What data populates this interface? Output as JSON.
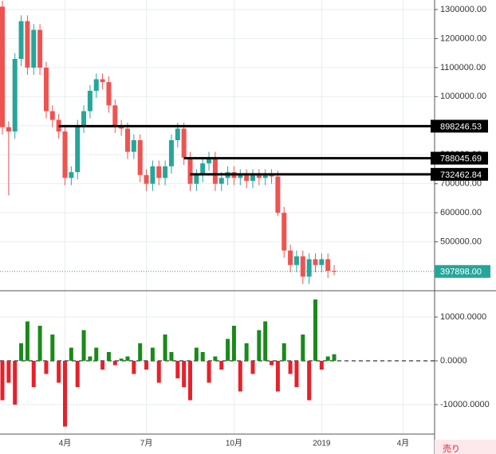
{
  "chart_data": {
    "type": "candlestick",
    "categories": [
      null,
      null,
      null,
      null,
      null,
      null,
      null,
      null,
      null,
      null,
      "4月",
      null,
      null,
      null,
      null,
      null,
      null,
      null,
      null,
      null,
      null,
      null,
      null,
      "7月",
      null,
      null,
      null,
      null,
      null,
      null,
      null,
      null,
      null,
      null,
      null,
      null,
      null,
      "10月",
      null,
      null,
      null,
      null,
      null,
      null,
      null,
      null,
      null,
      null,
      null,
      null,
      null,
      "2019",
      null,
      null,
      null,
      null,
      null,
      null,
      null,
      null,
      null,
      null,
      null,
      null,
      "4月",
      null,
      null,
      null,
      null,
      null
    ],
    "open": [
      1310000,
      895000,
      880000,
      1130000,
      1260000,
      1100000,
      1230000,
      1100000,
      950000,
      920000,
      880000,
      720000,
      740000,
      900000,
      950000,
      1020000,
      1060000,
      1050000,
      970000,
      900000,
      890000,
      810000,
      850000,
      730000,
      700000,
      760000,
      720000,
      760000,
      850000,
      890000,
      790000,
      700000,
      730000,
      770000,
      790000,
      700000,
      720000,
      740000,
      720000,
      730000,
      710000,
      730000,
      720000,
      730000,
      725000,
      600000,
      470000,
      420000,
      450000,
      380000,
      440000,
      420000,
      440000,
      400000,
      null,
      null,
      null,
      null,
      null,
      null,
      null,
      null,
      null,
      null,
      null,
      null,
      null,
      null,
      null,
      null
    ],
    "high": [
      1330000,
      915000,
      1150000,
      1280000,
      1280000,
      1250000,
      1250000,
      1120000,
      970000,
      940000,
      900000,
      760000,
      920000,
      970000,
      1040000,
      1080000,
      1080000,
      1070000,
      990000,
      920000,
      910000,
      870000,
      870000,
      750000,
      780000,
      780000,
      780000,
      870000,
      910000,
      910000,
      810000,
      750000,
      790000,
      810000,
      810000,
      740000,
      760000,
      760000,
      750000,
      750000,
      750000,
      750000,
      750000,
      750000,
      745000,
      620000,
      490000,
      470000,
      470000,
      460000,
      460000,
      460000,
      460000,
      420000,
      null,
      null,
      null,
      null,
      null,
      null,
      null,
      null,
      null,
      null,
      null,
      null,
      null,
      null,
      null,
      null
    ],
    "low": [
      870000,
      660000,
      855000,
      1105000,
      1075000,
      1075000,
      1075000,
      925000,
      895000,
      855000,
      695000,
      695000,
      715000,
      875000,
      925000,
      995000,
      1025000,
      945000,
      875000,
      865000,
      785000,
      785000,
      705000,
      675000,
      675000,
      695000,
      695000,
      735000,
      825000,
      765000,
      675000,
      675000,
      705000,
      745000,
      675000,
      675000,
      695000,
      695000,
      695000,
      685000,
      685000,
      695000,
      695000,
      700000,
      590000,
      445000,
      395000,
      395000,
      355000,
      355000,
      395000,
      395000,
      375000,
      385000,
      null,
      null,
      null,
      null,
      null,
      null,
      null,
      null,
      null,
      null,
      null,
      null,
      null,
      null,
      null,
      null
    ],
    "close": [
      895000,
      880000,
      1130000,
      1260000,
      1100000,
      1230000,
      1100000,
      950000,
      920000,
      880000,
      720000,
      740000,
      900000,
      950000,
      1020000,
      1060000,
      1050000,
      970000,
      900000,
      890000,
      810000,
      850000,
      730000,
      700000,
      760000,
      720000,
      760000,
      850000,
      890000,
      790000,
      700000,
      730000,
      770000,
      790000,
      700000,
      720000,
      740000,
      720000,
      730000,
      710000,
      730000,
      720000,
      730000,
      725000,
      600000,
      470000,
      420000,
      450000,
      380000,
      440000,
      420000,
      440000,
      400000,
      397898,
      null,
      null,
      null,
      null,
      null,
      null,
      null,
      null,
      null,
      null,
      null,
      null,
      null,
      null,
      null,
      null
    ],
    "up_color": "#26a69a",
    "down_color": "#ef5350",
    "ylim": [
      331500,
      1332900
    ],
    "yticks": [
      {
        "value": 500000,
        "label": "500000.00"
      },
      {
        "value": 600000,
        "label": "600000.00"
      },
      {
        "value": 700000,
        "label": "700000.00"
      },
      {
        "value": 800000,
        "label": "800000.00"
      },
      {
        "value": 900000,
        "label": "900000.00"
      },
      {
        "value": 1000000,
        "label": "1000000.00"
      },
      {
        "value": 1100000,
        "label": "1100000.00"
      },
      {
        "value": 1200000,
        "label": "1200000.00"
      },
      {
        "value": 1300000,
        "label": "1300000.00"
      }
    ],
    "levels": [
      {
        "value": 898246.53,
        "label": "898246.53"
      },
      {
        "value": 788045.69,
        "label": "788045.69"
      },
      {
        "value": 732462.84,
        "label": "732462.84"
      }
    ],
    "price_line": {
      "value": 397898,
      "label": "397898.00"
    },
    "grid": true,
    "indicator": {
      "type": "histogram",
      "values": [
        -9000,
        -5000,
        -10000,
        4000,
        9000,
        -6000,
        8000,
        -3000,
        6000,
        -5000,
        -15000,
        3000,
        -6000,
        7000,
        1000,
        3000,
        -2000,
        2000,
        -1000,
        500,
        1000,
        -3000,
        4000,
        -2000,
        3000,
        -5000,
        6000,
        2000,
        -4000,
        -6000,
        -9000,
        3000,
        2000,
        -5000,
        1000,
        -2000,
        5000,
        8000,
        -7000,
        4000,
        -3000,
        7000,
        9000,
        -1000,
        -7000,
        4000,
        -3000,
        -6000,
        6000,
        -9000,
        14000,
        -2000,
        1000,
        1500,
        null,
        null,
        null,
        null,
        null,
        null,
        null,
        null,
        null,
        null,
        null,
        null,
        null,
        null,
        null,
        null
      ],
      "up_color": "#1a8a1a",
      "down_color": "#e8202a",
      "ylim": [
        -16727,
        15818
      ],
      "yticks": [
        {
          "value": -10000,
          "label": "-10000.0000"
        },
        {
          "value": 0,
          "label": "0.0000"
        },
        {
          "value": 10000,
          "label": "10000.0000"
        }
      ]
    }
  },
  "sell_button": "売り"
}
